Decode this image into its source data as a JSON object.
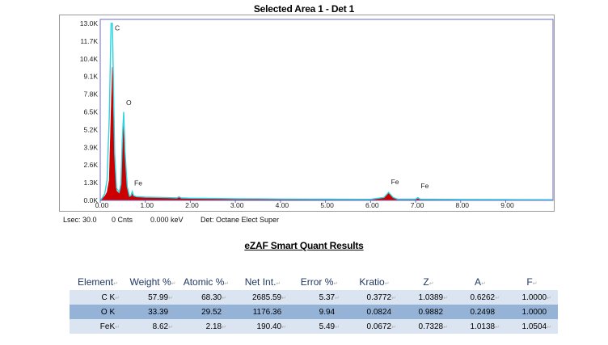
{
  "chart_data": {
    "type": "line",
    "title": "Selected Area 1 - Det 1",
    "x_ticks": [
      "0.00",
      "1.00",
      "2.00",
      "3.00",
      "4.00",
      "5.00",
      "6.00",
      "7.00",
      "8.00",
      "9.00"
    ],
    "y_ticks": [
      "0.0K",
      "1.3K",
      "2.6K",
      "3.9K",
      "5.2K",
      "6.5K",
      "7.8K",
      "9.1K",
      "10.4K",
      "11.7K",
      "13.0K"
    ],
    "xlim": [
      0,
      10.05
    ],
    "ylim": [
      0,
      13000
    ],
    "fill_color": "#cc0000",
    "line_color": "#2ad4e0",
    "series": [
      {
        "values": [
          [
            0,
            0
          ],
          [
            0.05,
            150
          ],
          [
            0.1,
            300
          ],
          [
            0.15,
            600
          ],
          [
            0.2,
            1500
          ],
          [
            0.24,
            6500
          ],
          [
            0.27,
            9800
          ],
          [
            0.29,
            6000
          ],
          [
            0.32,
            2500
          ],
          [
            0.36,
            700
          ],
          [
            0.42,
            500
          ],
          [
            0.46,
            900
          ],
          [
            0.49,
            3500
          ],
          [
            0.52,
            5900
          ],
          [
            0.55,
            3000
          ],
          [
            0.6,
            800
          ],
          [
            0.65,
            250
          ],
          [
            0.68,
            300
          ],
          [
            0.71,
            600
          ],
          [
            0.74,
            300
          ],
          [
            0.8,
            230
          ],
          [
            1.0,
            200
          ],
          [
            1.3,
            180
          ],
          [
            1.5,
            160
          ],
          [
            1.7,
            150
          ],
          [
            1.75,
            230
          ],
          [
            1.8,
            150
          ],
          [
            2.0,
            130
          ],
          [
            2.5,
            110
          ],
          [
            3.0,
            90
          ],
          [
            3.5,
            80
          ],
          [
            4.0,
            70
          ],
          [
            5.0,
            60
          ],
          [
            6.0,
            55
          ],
          [
            6.3,
            200
          ],
          [
            6.4,
            550
          ],
          [
            6.5,
            200
          ],
          [
            6.6,
            60
          ],
          [
            7.0,
            60
          ],
          [
            7.05,
            120
          ],
          [
            7.1,
            60
          ],
          [
            8.0,
            40
          ],
          [
            9.0,
            30
          ],
          [
            10.05,
            20
          ]
        ]
      },
      {
        "values": [
          [
            0,
            0
          ],
          [
            0.05,
            200
          ],
          [
            0.1,
            500
          ],
          [
            0.15,
            1500
          ],
          [
            0.2,
            6000
          ],
          [
            0.24,
            13000
          ],
          [
            0.27,
            13000
          ],
          [
            0.29,
            9000
          ],
          [
            0.32,
            3500
          ],
          [
            0.36,
            900
          ],
          [
            0.42,
            600
          ],
          [
            0.46,
            1200
          ],
          [
            0.49,
            4500
          ],
          [
            0.52,
            6500
          ],
          [
            0.55,
            3600
          ],
          [
            0.6,
            1000
          ],
          [
            0.65,
            300
          ],
          [
            0.68,
            350
          ],
          [
            0.71,
            650
          ],
          [
            0.74,
            350
          ],
          [
            0.8,
            280
          ],
          [
            1.0,
            240
          ],
          [
            1.3,
            220
          ],
          [
            1.5,
            200
          ],
          [
            1.7,
            180
          ],
          [
            1.75,
            260
          ],
          [
            1.8,
            180
          ],
          [
            2.0,
            160
          ],
          [
            2.5,
            140
          ],
          [
            3.0,
            120
          ],
          [
            3.5,
            110
          ],
          [
            4.0,
            100
          ],
          [
            5.0,
            90
          ],
          [
            6.0,
            80
          ],
          [
            6.3,
            220
          ],
          [
            6.4,
            580
          ],
          [
            6.5,
            220
          ],
          [
            6.6,
            90
          ],
          [
            7.0,
            90
          ],
          [
            7.05,
            200
          ],
          [
            7.1,
            90
          ],
          [
            8.0,
            70
          ],
          [
            9.0,
            60
          ],
          [
            10.05,
            50
          ]
        ]
      }
    ],
    "annotations": [
      {
        "label": "C",
        "x": 0.27,
        "y": 12500
      },
      {
        "label": "O",
        "x": 0.52,
        "y": 7000
      },
      {
        "label": "Fe",
        "x": 0.7,
        "y": 1100
      },
      {
        "label": "Fe",
        "x": 6.4,
        "y": 1200
      },
      {
        "label": "Fe",
        "x": 7.06,
        "y": 900
      }
    ]
  },
  "status": {
    "lsec": "Lsec: 30.0",
    "cnts": "0 Cnts",
    "kev": "0.000 keV",
    "det": "Det: Octane Elect Super"
  },
  "results": {
    "title": "eZAF Smart Quant Results",
    "headers": [
      "Element",
      "Weight %",
      "Atomic %",
      "Net Int.",
      "Error %",
      "Kratio",
      "Z",
      "A",
      "F"
    ],
    "rows": [
      [
        "C K",
        "57.99",
        "68.30",
        "2685.59",
        "5.37",
        "0.3772",
        "1.0389",
        "0.6262",
        "1.0000"
      ],
      [
        "O K",
        "33.39",
        "29.52",
        "1176.36",
        "9.94",
        "0.0824",
        "0.9882",
        "0.2498",
        "1.0000"
      ],
      [
        "FeK",
        "8.62",
        "2.18",
        "190.40",
        "5.49",
        "0.0672",
        "0.7328",
        "1.0138",
        "1.0504"
      ]
    ]
  }
}
